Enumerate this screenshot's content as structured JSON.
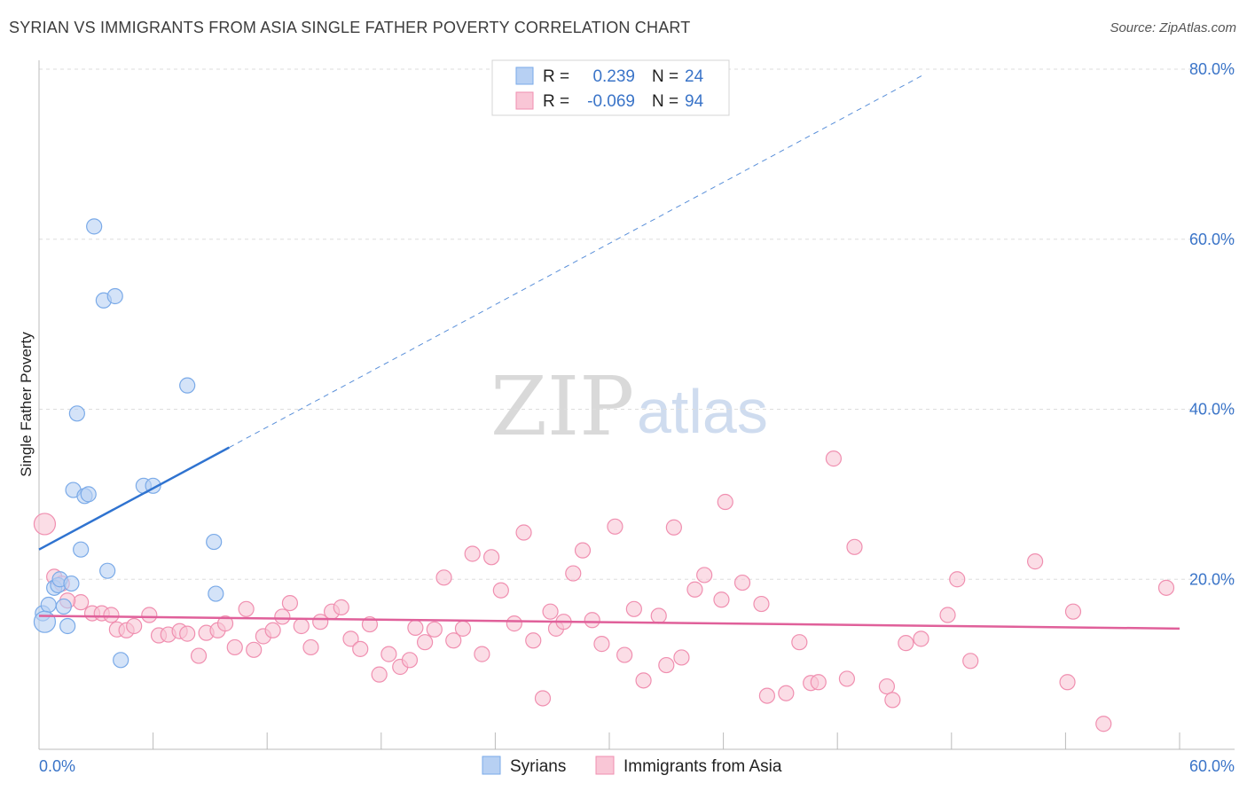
{
  "chart_data": {
    "type": "scatter",
    "title": "SYRIAN VS IMMIGRANTS FROM ASIA SINGLE FATHER POVERTY CORRELATION CHART",
    "source": "Source: ZipAtlas.com",
    "xlabel": "",
    "ylabel": "Single Father Poverty",
    "xlim": [
      0,
      60
    ],
    "ylim": [
      0,
      80
    ],
    "x_tick_labels": [
      "0.0%",
      "60.0%"
    ],
    "y_ticks": [
      20,
      40,
      60,
      80
    ],
    "y_tick_labels": [
      "20.0%",
      "40.0%",
      "60.0%",
      "80.0%"
    ],
    "watermark": {
      "zip": "ZIP",
      "atlas": "atlas"
    },
    "legend": {
      "r_label": "R =",
      "n_label": "N =",
      "rows": [
        {
          "r": "0.239",
          "n": "24"
        },
        {
          "r": "-0.069",
          "n": "94"
        }
      ]
    },
    "series": [
      {
        "name": "Syrians",
        "color": "#7aaae8",
        "fill": "#b7d0f3",
        "line_color": "#2f73d0",
        "trend": {
          "x0": 0,
          "y0": 23.5,
          "x1": 10,
          "y1": 35.5,
          "dash_to_x": 46.5
        },
        "points": [
          [
            0.2,
            16.0
          ],
          [
            0.5,
            17.0
          ],
          [
            0.8,
            19.0
          ],
          [
            1.0,
            19.3
          ],
          [
            1.1,
            20.0
          ],
          [
            1.3,
            16.8
          ],
          [
            1.5,
            14.5
          ],
          [
            1.7,
            19.5
          ],
          [
            1.8,
            30.5
          ],
          [
            2.0,
            39.5
          ],
          [
            2.2,
            23.5
          ],
          [
            2.4,
            29.8
          ],
          [
            2.6,
            30.0
          ],
          [
            2.9,
            61.5
          ],
          [
            3.4,
            52.8
          ],
          [
            3.6,
            21.0
          ],
          [
            4.0,
            53.3
          ],
          [
            4.3,
            10.5
          ],
          [
            5.5,
            31.0
          ],
          [
            6.0,
            31.0
          ],
          [
            7.8,
            42.8
          ],
          [
            9.2,
            24.4
          ],
          [
            9.3,
            18.3
          ],
          [
            0.3,
            15.0
          ]
        ]
      },
      {
        "name": "Immigrants from Asia",
        "color": "#f08fb0",
        "fill": "#f9c6d6",
        "line_color": "#e0609a",
        "trend": {
          "x0": 0,
          "y0": 15.7,
          "x1": 60,
          "y1": 14.2
        },
        "points": [
          [
            0.3,
            26.5
          ],
          [
            0.8,
            20.3
          ],
          [
            1.2,
            19.5
          ],
          [
            2.2,
            17.3
          ],
          [
            2.8,
            16.0
          ],
          [
            3.3,
            16.0
          ],
          [
            3.8,
            15.8
          ],
          [
            4.1,
            14.1
          ],
          [
            4.6,
            14.0
          ],
          [
            5.0,
            14.5
          ],
          [
            5.8,
            15.8
          ],
          [
            6.3,
            13.4
          ],
          [
            6.8,
            13.5
          ],
          [
            7.4,
            13.9
          ],
          [
            7.8,
            13.6
          ],
          [
            8.4,
            11.0
          ],
          [
            8.8,
            13.7
          ],
          [
            9.4,
            14.0
          ],
          [
            9.8,
            14.8
          ],
          [
            10.3,
            12.0
          ],
          [
            10.9,
            16.5
          ],
          [
            11.3,
            11.7
          ],
          [
            11.8,
            13.3
          ],
          [
            12.3,
            14.0
          ],
          [
            12.8,
            15.6
          ],
          [
            13.2,
            17.2
          ],
          [
            13.8,
            14.5
          ],
          [
            14.3,
            12.0
          ],
          [
            14.8,
            15.0
          ],
          [
            15.4,
            16.2
          ],
          [
            15.9,
            16.7
          ],
          [
            16.4,
            13.0
          ],
          [
            16.9,
            11.8
          ],
          [
            17.4,
            14.7
          ],
          [
            17.9,
            8.8
          ],
          [
            18.4,
            11.2
          ],
          [
            19.0,
            9.7
          ],
          [
            19.5,
            10.5
          ],
          [
            19.8,
            14.3
          ],
          [
            20.3,
            12.6
          ],
          [
            20.8,
            14.1
          ],
          [
            21.3,
            20.2
          ],
          [
            21.8,
            12.8
          ],
          [
            22.3,
            14.2
          ],
          [
            22.8,
            23.0
          ],
          [
            23.3,
            11.2
          ],
          [
            23.8,
            22.6
          ],
          [
            24.3,
            18.7
          ],
          [
            25.0,
            14.8
          ],
          [
            25.5,
            25.5
          ],
          [
            26.0,
            12.8
          ],
          [
            26.5,
            6.0
          ],
          [
            26.9,
            16.2
          ],
          [
            27.2,
            14.2
          ],
          [
            27.6,
            15.0
          ],
          [
            28.1,
            20.7
          ],
          [
            28.6,
            23.4
          ],
          [
            29.1,
            15.2
          ],
          [
            29.6,
            12.4
          ],
          [
            30.3,
            26.2
          ],
          [
            30.8,
            11.1
          ],
          [
            31.3,
            16.5
          ],
          [
            31.8,
            8.1
          ],
          [
            32.6,
            15.7
          ],
          [
            33.0,
            9.9
          ],
          [
            33.4,
            26.1
          ],
          [
            33.8,
            10.8
          ],
          [
            34.5,
            18.8
          ],
          [
            35.0,
            20.5
          ],
          [
            35.9,
            17.6
          ],
          [
            36.1,
            29.1
          ],
          [
            37.0,
            19.6
          ],
          [
            38.0,
            17.1
          ],
          [
            38.3,
            6.3
          ],
          [
            39.3,
            6.6
          ],
          [
            40.0,
            12.6
          ],
          [
            40.6,
            7.8
          ],
          [
            41.0,
            7.9
          ],
          [
            41.8,
            34.2
          ],
          [
            42.5,
            8.3
          ],
          [
            42.9,
            23.8
          ],
          [
            44.6,
            7.4
          ],
          [
            44.9,
            5.8
          ],
          [
            45.6,
            12.5
          ],
          [
            46.4,
            13.0
          ],
          [
            47.8,
            15.8
          ],
          [
            48.3,
            20.0
          ],
          [
            49.0,
            10.4
          ],
          [
            52.4,
            22.1
          ],
          [
            54.1,
            7.9
          ],
          [
            54.4,
            16.2
          ],
          [
            56.0,
            3.0
          ],
          [
            59.3,
            19.0
          ],
          [
            1.5,
            17.5
          ]
        ]
      }
    ]
  }
}
